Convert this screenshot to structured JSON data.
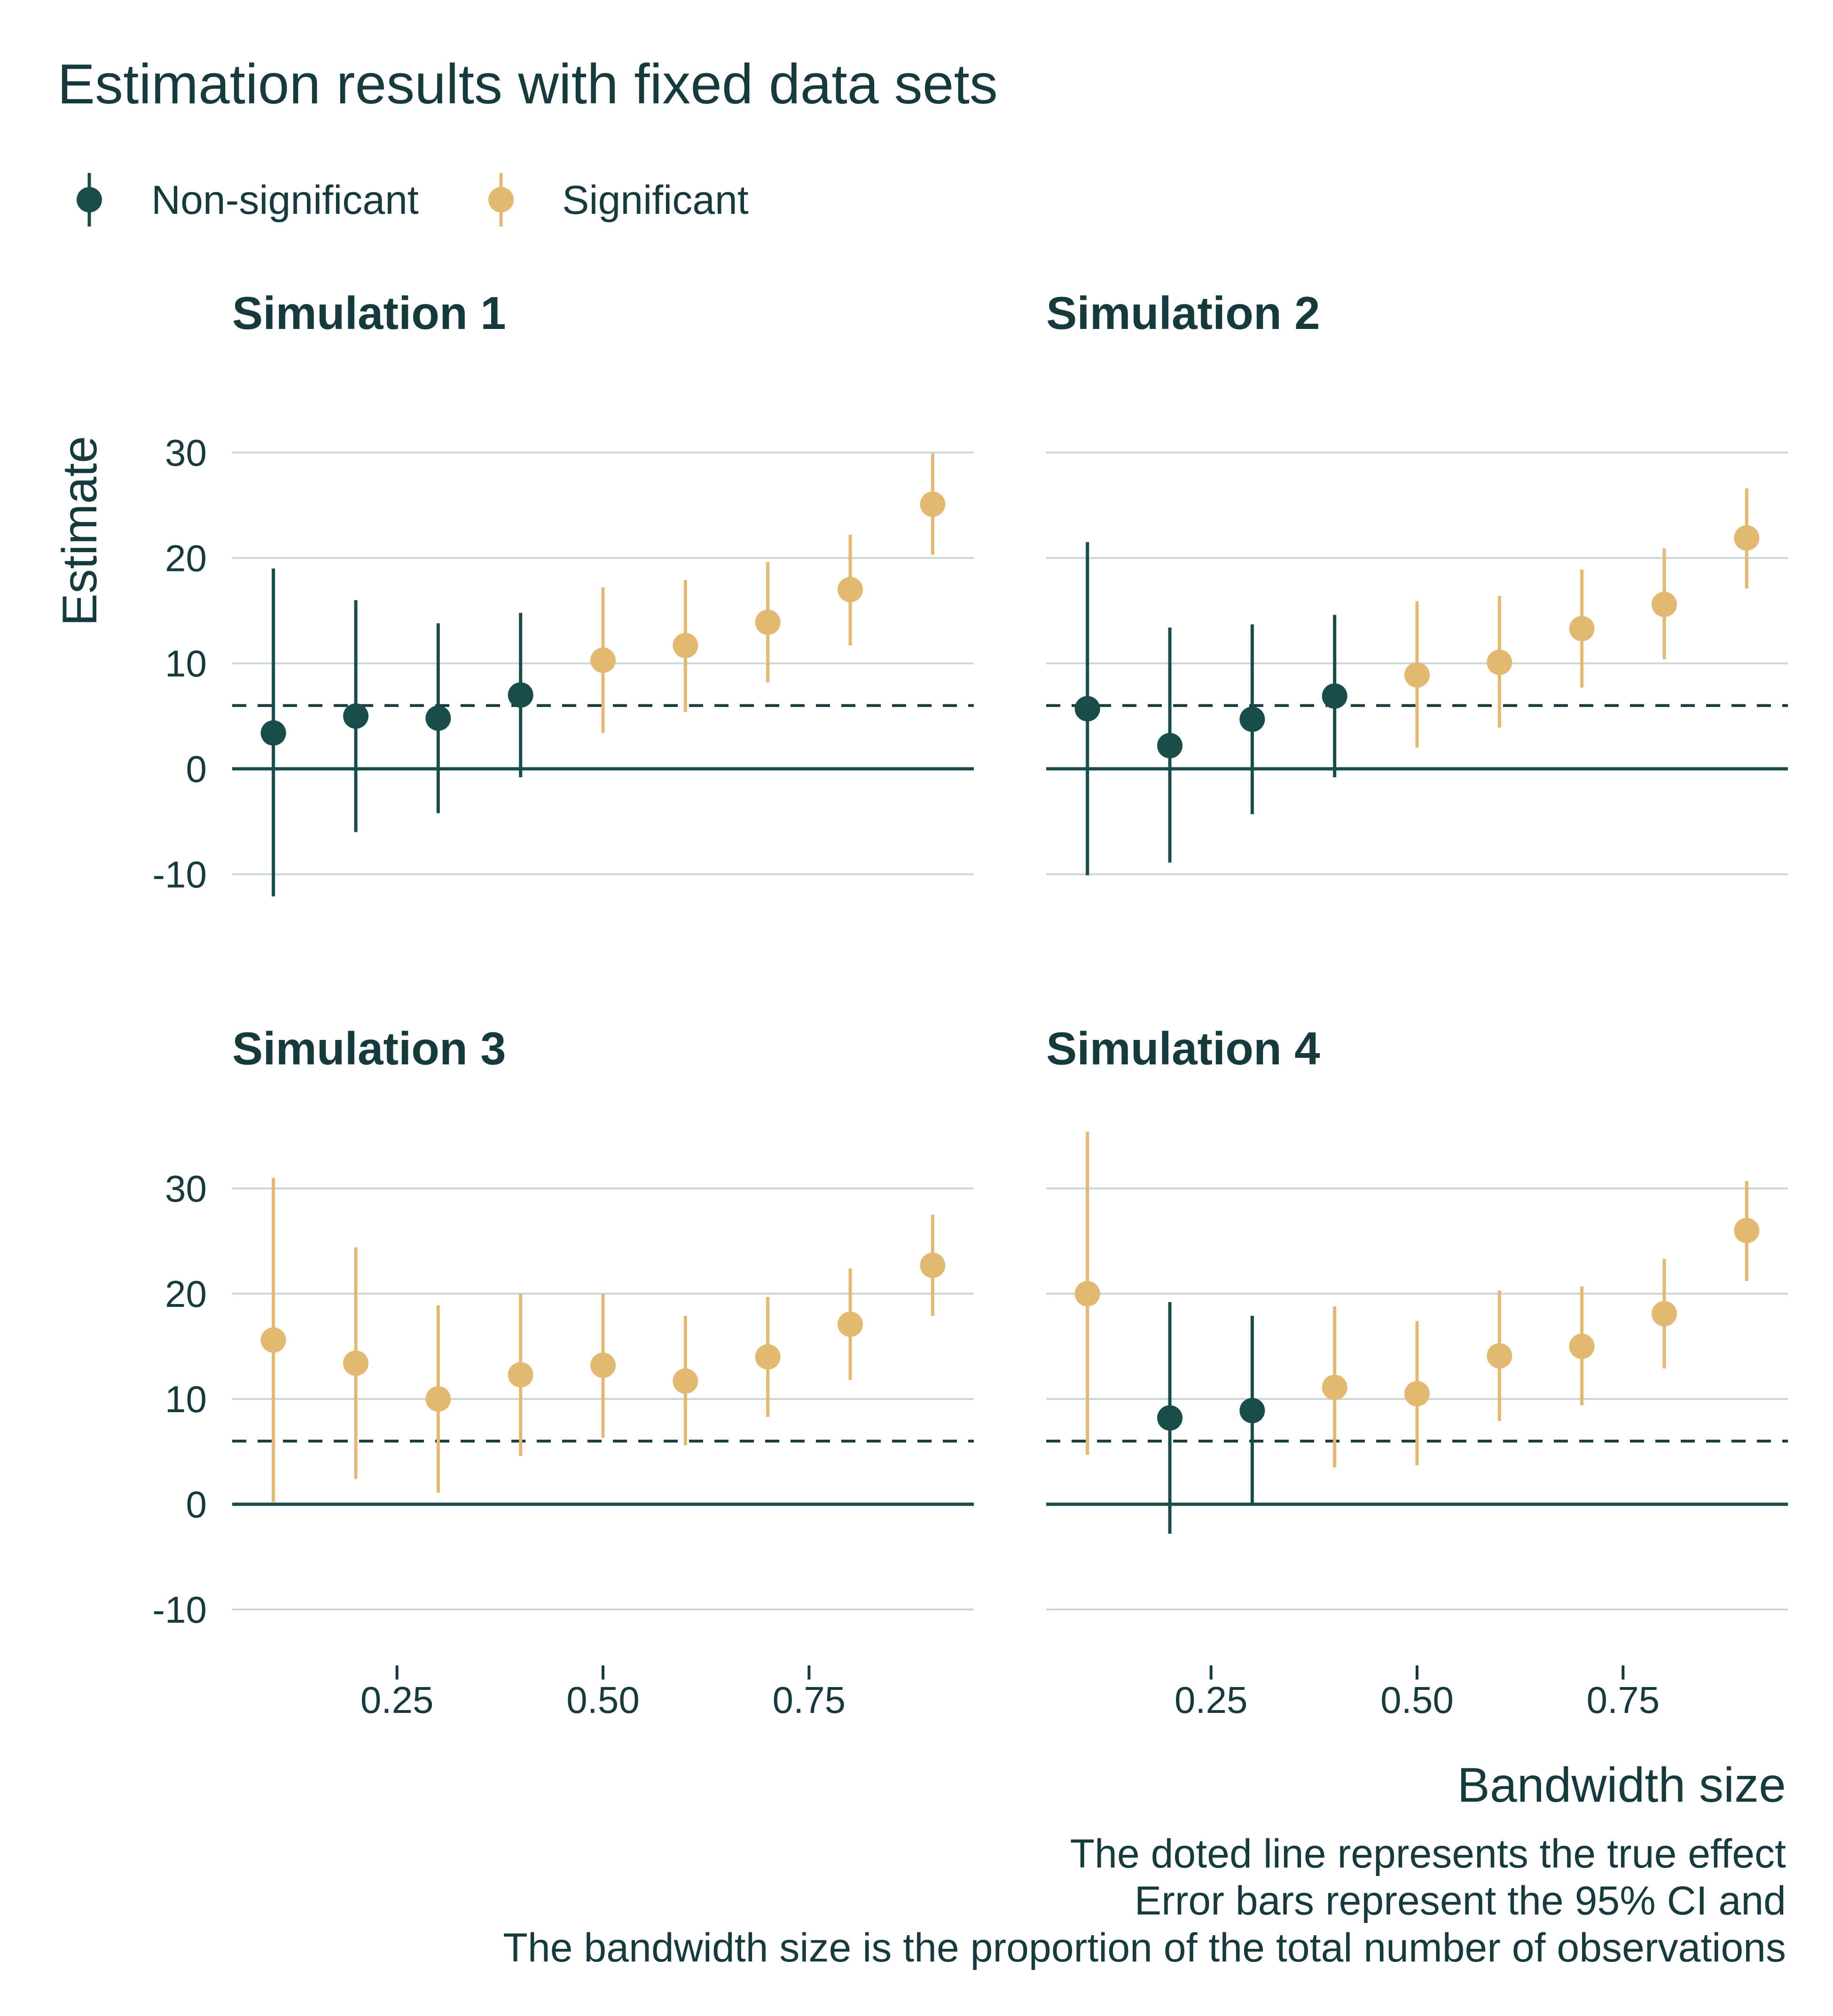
{
  "title": "Estimation results with fixed data sets",
  "legend": {
    "items": [
      {
        "label": "Non-significant",
        "color": "#1a4c4c"
      },
      {
        "label": "Significant",
        "color": "#e3b873"
      }
    ]
  },
  "axes": {
    "xlabel": "Bandwidth size",
    "ylabel": "Estimate"
  },
  "caption": [
    "The doted line represents the true effect",
    "Error bars represent the 95% CI and",
    "The bandwidth size is the proportion of the total number of observations"
  ],
  "chart_data": {
    "type": "scatter",
    "subtype": "pointrange",
    "layout": "facet 2x2",
    "x_range": [
      0.05,
      0.95
    ],
    "y_range": [
      -12,
      35
    ],
    "x_ticks": [
      0.25,
      0.5,
      0.75
    ],
    "x_tick_labels": [
      "0.25",
      "0.50",
      "0.75"
    ],
    "y_ticks": [
      -10,
      0,
      10,
      20,
      30
    ],
    "y_tick_labels": [
      "-10",
      "0",
      "10",
      "20",
      "30"
    ],
    "zero_line": 0,
    "true_effect": 6,
    "grid": "horizontal",
    "legend_position": "top-left",
    "colors": {
      "Non-significant": "#1a4c4c",
      "Significant": "#e3b873",
      "grid": "#c9d6d5",
      "text": "#173a3f"
    },
    "panels": [
      {
        "title": "Simulation 1",
        "points": [
          {
            "x": 0.1,
            "y": 3.4,
            "lo": -12.1,
            "hi": 19.0,
            "group": "Non-significant"
          },
          {
            "x": 0.2,
            "y": 5.0,
            "lo": -6.0,
            "hi": 16.0,
            "group": "Non-significant"
          },
          {
            "x": 0.3,
            "y": 4.8,
            "lo": -4.2,
            "hi": 13.8,
            "group": "Non-significant"
          },
          {
            "x": 0.4,
            "y": 7.0,
            "lo": -0.8,
            "hi": 14.8,
            "group": "Non-significant"
          },
          {
            "x": 0.5,
            "y": 10.3,
            "lo": 3.4,
            "hi": 17.2,
            "group": "Significant"
          },
          {
            "x": 0.6,
            "y": 11.7,
            "lo": 5.4,
            "hi": 17.9,
            "group": "Significant"
          },
          {
            "x": 0.7,
            "y": 13.9,
            "lo": 8.2,
            "hi": 19.6,
            "group": "Significant"
          },
          {
            "x": 0.8,
            "y": 17.0,
            "lo": 11.7,
            "hi": 22.2,
            "group": "Significant"
          },
          {
            "x": 0.9,
            "y": 25.1,
            "lo": 20.3,
            "hi": 29.9,
            "group": "Significant"
          }
        ]
      },
      {
        "title": "Simulation 2",
        "points": [
          {
            "x": 0.1,
            "y": 5.7,
            "lo": -10.1,
            "hi": 21.5,
            "group": "Non-significant"
          },
          {
            "x": 0.2,
            "y": 2.2,
            "lo": -8.9,
            "hi": 13.4,
            "group": "Non-significant"
          },
          {
            "x": 0.3,
            "y": 4.7,
            "lo": -4.3,
            "hi": 13.7,
            "group": "Non-significant"
          },
          {
            "x": 0.4,
            "y": 6.9,
            "lo": -0.8,
            "hi": 14.6,
            "group": "Non-significant"
          },
          {
            "x": 0.5,
            "y": 8.9,
            "lo": 2.0,
            "hi": 15.9,
            "group": "Significant"
          },
          {
            "x": 0.6,
            "y": 10.1,
            "lo": 3.9,
            "hi": 16.4,
            "group": "Significant"
          },
          {
            "x": 0.7,
            "y": 13.3,
            "lo": 7.7,
            "hi": 18.9,
            "group": "Significant"
          },
          {
            "x": 0.8,
            "y": 15.6,
            "lo": 10.4,
            "hi": 20.9,
            "group": "Significant"
          },
          {
            "x": 0.9,
            "y": 21.9,
            "lo": 17.1,
            "hi": 26.6,
            "group": "Significant"
          }
        ]
      },
      {
        "title": "Simulation 3",
        "points": [
          {
            "x": 0.1,
            "y": 15.6,
            "lo": 0.2,
            "hi": 31.0,
            "group": "Significant"
          },
          {
            "x": 0.2,
            "y": 13.4,
            "lo": 2.4,
            "hi": 24.4,
            "group": "Significant"
          },
          {
            "x": 0.3,
            "y": 10.0,
            "lo": 1.1,
            "hi": 18.9,
            "group": "Significant"
          },
          {
            "x": 0.4,
            "y": 12.3,
            "lo": 4.6,
            "hi": 20.0,
            "group": "Significant"
          },
          {
            "x": 0.5,
            "y": 13.2,
            "lo": 6.3,
            "hi": 20.0,
            "group": "Significant"
          },
          {
            "x": 0.6,
            "y": 11.7,
            "lo": 5.6,
            "hi": 17.9,
            "group": "Significant"
          },
          {
            "x": 0.7,
            "y": 14.0,
            "lo": 8.3,
            "hi": 19.7,
            "group": "Significant"
          },
          {
            "x": 0.8,
            "y": 17.1,
            "lo": 11.8,
            "hi": 22.4,
            "group": "Significant"
          },
          {
            "x": 0.9,
            "y": 22.7,
            "lo": 17.9,
            "hi": 27.5,
            "group": "Significant"
          }
        ]
      },
      {
        "title": "Simulation 4",
        "points": [
          {
            "x": 0.1,
            "y": 20.0,
            "lo": 4.7,
            "hi": 35.4,
            "group": "Significant"
          },
          {
            "x": 0.2,
            "y": 8.2,
            "lo": -2.8,
            "hi": 19.2,
            "group": "Non-significant"
          },
          {
            "x": 0.3,
            "y": 8.9,
            "lo": 0.1,
            "hi": 17.9,
            "group": "Non-significant"
          },
          {
            "x": 0.4,
            "y": 11.1,
            "lo": 3.5,
            "hi": 18.8,
            "group": "Significant"
          },
          {
            "x": 0.5,
            "y": 10.5,
            "lo": 3.7,
            "hi": 17.4,
            "group": "Significant"
          },
          {
            "x": 0.6,
            "y": 14.1,
            "lo": 7.9,
            "hi": 20.3,
            "group": "Significant"
          },
          {
            "x": 0.7,
            "y": 15.0,
            "lo": 9.4,
            "hi": 20.7,
            "group": "Significant"
          },
          {
            "x": 0.8,
            "y": 18.1,
            "lo": 12.9,
            "hi": 23.3,
            "group": "Significant"
          },
          {
            "x": 0.9,
            "y": 26.0,
            "lo": 21.2,
            "hi": 30.7,
            "group": "Significant"
          }
        ]
      }
    ]
  }
}
